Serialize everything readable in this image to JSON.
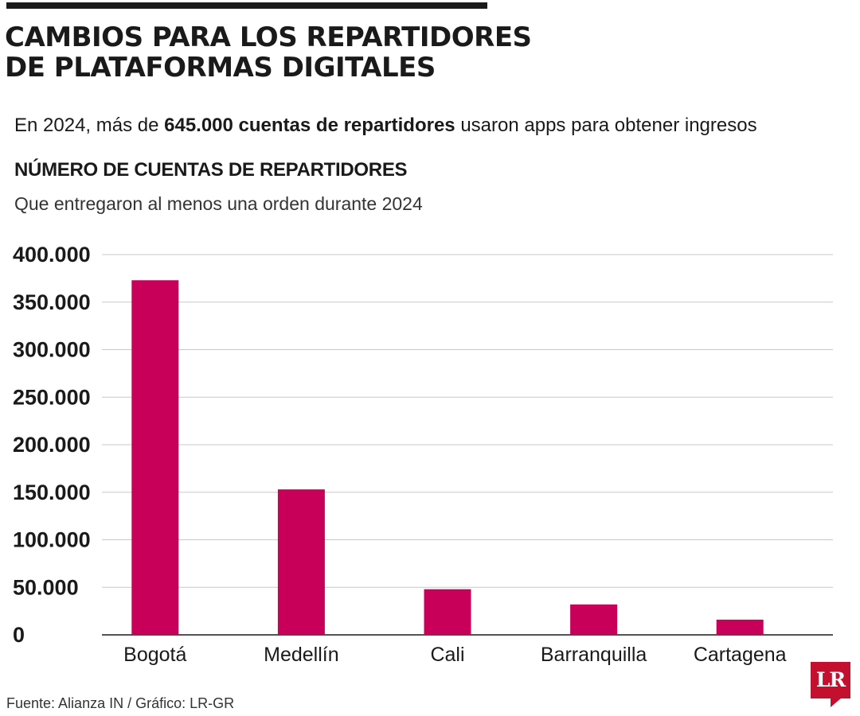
{
  "header": {
    "title_line1": "CAMBIOS PARA LOS REPARTIDORES",
    "title_line2": "DE PLATAFORMAS DIGITALES",
    "subtitle_pre": "En 2024, más de ",
    "subtitle_bold": "645.000 cuentas de repartidores",
    "subtitle_post": " usaron apps para obtener ingresos"
  },
  "chart_data": {
    "type": "bar",
    "title": "NÚMERO DE CUENTAS DE REPARTIDORES",
    "subtitle": "Que entregaron al menos una orden durante 2024",
    "categories": [
      "Bogotá",
      "Medellín",
      "Cali",
      "Barranquilla",
      "Cartagena"
    ],
    "values": [
      373000,
      153000,
      48000,
      32000,
      16000
    ],
    "ylim": [
      0,
      400000
    ],
    "yticks": [
      0,
      50000,
      100000,
      150000,
      200000,
      250000,
      300000,
      350000,
      400000
    ],
    "ytick_labels": [
      "0",
      "50.000",
      "100.000",
      "150.000",
      "200.000",
      "250.000",
      "300.000",
      "350.000",
      "400.000"
    ],
    "grid": true,
    "bar_color": "#c8005a"
  },
  "footer": {
    "source": "Fuente: Alianza IN / Gráfico: LR-GR",
    "logo_text": "LR",
    "logo_color": "#c4102f"
  }
}
